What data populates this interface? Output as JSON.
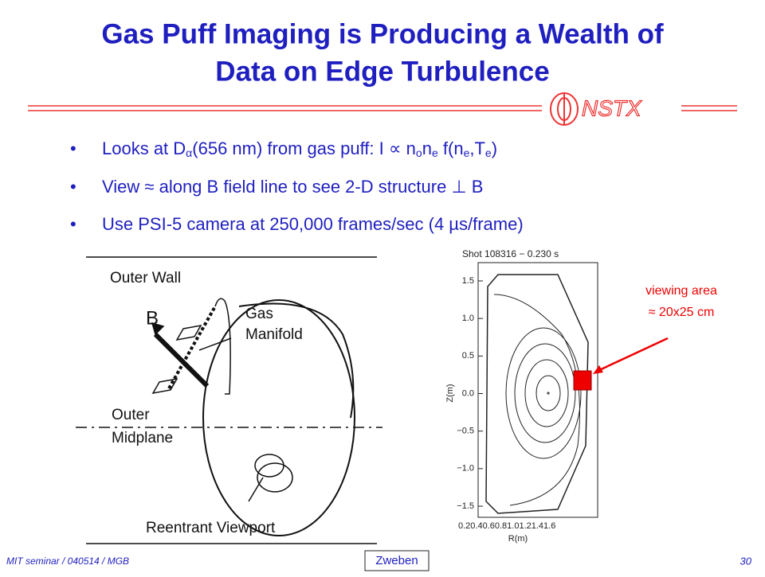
{
  "title": [
    "Gas Puff Imaging is Producing a Wealth of",
    "Data on Edge Turbulence"
  ],
  "logo": "NSTX",
  "bullets": [
    [
      "Looks at D",
      "α",
      "(656 nm) from gas puff:  I ∝ n",
      "o",
      "n",
      "e",
      " f(n",
      "e",
      ",T",
      "e",
      ")"
    ],
    [
      "View ≈ along B field line to see 2-D structure ⊥ B"
    ],
    [
      "Use PSI-5 camera at 250,000 frames/sec (4 µs/frame)"
    ]
  ],
  "diagram": {
    "outer_wall": "Outer Wall",
    "b": "B",
    "gas_manifold": [
      "Gas",
      "Manifold"
    ],
    "outer_midplane": [
      "Outer",
      "Midplane"
    ],
    "viewport": "Reentrant Viewport"
  },
  "plot": {
    "title": "Shot 108316 − 0.230 s",
    "yticks": [
      "1.5",
      "1.0",
      "0.5",
      "0.0",
      "−0.5",
      "−1.0",
      "−1.5"
    ],
    "xtick_labels": "0.20.40.60.81.01.21.41.6",
    "xlabel": "R(m)",
    "ylabel": "Z(m)"
  },
  "annotation": [
    "viewing area",
    "≈ 20x25 cm"
  ],
  "footer": {
    "left": "MIT seminar / 040514 / MGB",
    "center": "Zweben",
    "page": "30"
  }
}
